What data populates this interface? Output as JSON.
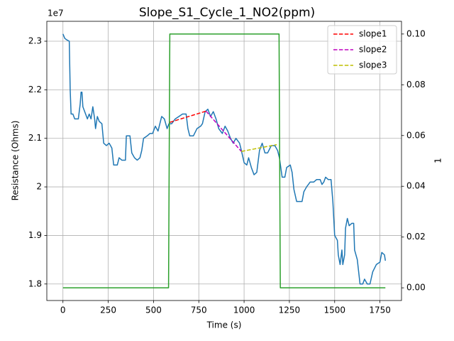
{
  "chart_data": {
    "type": "line",
    "title": "Slope_S1_Cycle_1_NO2(ppm)",
    "x_label": "Time (s)",
    "y_label": "Resistance (Ohms)",
    "y2_label": "1",
    "y_offset_label": "1e7",
    "y_color": "#1f77b4",
    "y2_color": "#2ca02c",
    "xlim": [
      -89,
      1869
    ],
    "xticks": [
      0,
      250,
      500,
      750,
      1000,
      1250,
      1500,
      1750
    ],
    "ylim": [
      1.766,
      2.341
    ],
    "yticks": [
      1.8,
      1.9,
      2.0,
      2.1,
      2.2,
      2.3
    ],
    "y2lim": [
      -0.005,
      0.105
    ],
    "y2ticks": [
      {
        "value": 0,
        "label": "0.00"
      },
      {
        "value": 0.02,
        "label": "0.02"
      },
      {
        "value": 0.04,
        "label": "0.04"
      },
      {
        "value": 0.06,
        "label": "0.06"
      },
      {
        "value": 0.08,
        "label": "0.08"
      },
      {
        "value": 0.1,
        "label": "0.10"
      }
    ],
    "grid": true,
    "legend": "upper right",
    "series": [
      {
        "color": "#1f77b4",
        "linestyle": "solid",
        "axis": "y",
        "x": [
          0,
          10,
          20,
          35,
          40,
          45,
          55,
          65,
          85,
          95,
          100,
          105,
          110,
          125,
          135,
          145,
          155,
          165,
          175,
          180,
          190,
          200,
          215,
          225,
          240,
          255,
          270,
          280,
          300,
          310,
          325,
          345,
          350,
          370,
          380,
          395,
          410,
          425,
          435,
          445,
          465,
          480,
          495,
          510,
          525,
          545,
          560,
          575,
          585,
          600,
          620,
          640,
          660,
          680,
          690,
          700,
          720,
          740,
          760,
          770,
          785,
          800,
          815,
          830,
          845,
          860,
          880,
          895,
          910,
          925,
          940,
          955,
          975,
          985,
          1000,
          1015,
          1025,
          1040,
          1055,
          1070,
          1085,
          1100,
          1115,
          1130,
          1150,
          1170,
          1185,
          1195,
          1210,
          1225,
          1235,
          1255,
          1265,
          1275,
          1290,
          1320,
          1330,
          1345,
          1365,
          1385,
          1400,
          1420,
          1430,
          1440,
          1450,
          1465,
          1480,
          1490,
          1500,
          1515,
          1520,
          1530,
          1540,
          1545,
          1555,
          1560,
          1570,
          1580,
          1595,
          1605,
          1610,
          1625,
          1640,
          1655,
          1665,
          1680,
          1695,
          1710,
          1730,
          1750,
          1760,
          1775,
          1780
        ],
        "values": [
          2.315,
          2.306,
          2.303,
          2.3,
          2.2,
          2.15,
          2.15,
          2.14,
          2.14,
          2.17,
          2.195,
          2.195,
          2.165,
          2.15,
          2.14,
          2.15,
          2.14,
          2.165,
          2.14,
          2.12,
          2.145,
          2.135,
          2.13,
          2.09,
          2.085,
          2.09,
          2.08,
          2.045,
          2.045,
          2.06,
          2.055,
          2.055,
          2.105,
          2.105,
          2.07,
          2.06,
          2.055,
          2.06,
          2.075,
          2.1,
          2.105,
          2.11,
          2.11,
          2.125,
          2.115,
          2.145,
          2.14,
          2.12,
          2.13,
          2.13,
          2.14,
          2.145,
          2.15,
          2.15,
          2.12,
          2.105,
          2.105,
          2.12,
          2.125,
          2.13,
          2.155,
          2.16,
          2.145,
          2.155,
          2.14,
          2.12,
          2.11,
          2.125,
          2.115,
          2.1,
          2.09,
          2.1,
          2.09,
          2.075,
          2.05,
          2.045,
          2.06,
          2.04,
          2.025,
          2.03,
          2.075,
          2.09,
          2.07,
          2.07,
          2.085,
          2.085,
          2.075,
          2.06,
          2.02,
          2.02,
          2.04,
          2.045,
          2.03,
          1.995,
          1.97,
          1.97,
          1.99,
          2.0,
          2.01,
          2.01,
          2.015,
          2.015,
          2.005,
          2.01,
          2.02,
          2.015,
          2.015,
          1.97,
          1.9,
          1.89,
          1.86,
          1.84,
          1.87,
          1.84,
          1.86,
          1.915,
          1.935,
          1.92,
          1.925,
          1.925,
          1.87,
          1.85,
          1.8,
          1.8,
          1.81,
          1.8,
          1.8,
          1.825,
          1.84,
          1.845,
          1.865,
          1.86,
          1.848
        ]
      },
      {
        "color": "#2ca02c",
        "linestyle": "solid",
        "axis": "y2",
        "x": [
          0,
          583,
          590,
          1193,
          1200,
          1780
        ],
        "values": [
          0,
          0,
          0.1,
          0.1,
          0,
          0
        ]
      },
      {
        "name": "slope1",
        "color": "#ff0000",
        "linestyle": "dashed",
        "axis": "y",
        "x": [
          590,
          790
        ],
        "values": [
          2.133,
          2.156
        ]
      },
      {
        "name": "slope2",
        "color": "#bf00bf",
        "linestyle": "dashed",
        "axis": "y",
        "x": [
          790,
          985
        ],
        "values": [
          2.156,
          2.073
        ]
      },
      {
        "name": "slope3",
        "color": "#bfbf00",
        "linestyle": "dashed",
        "axis": "y",
        "x": [
          985,
          1180
        ],
        "values": [
          2.073,
          2.087
        ]
      }
    ]
  }
}
